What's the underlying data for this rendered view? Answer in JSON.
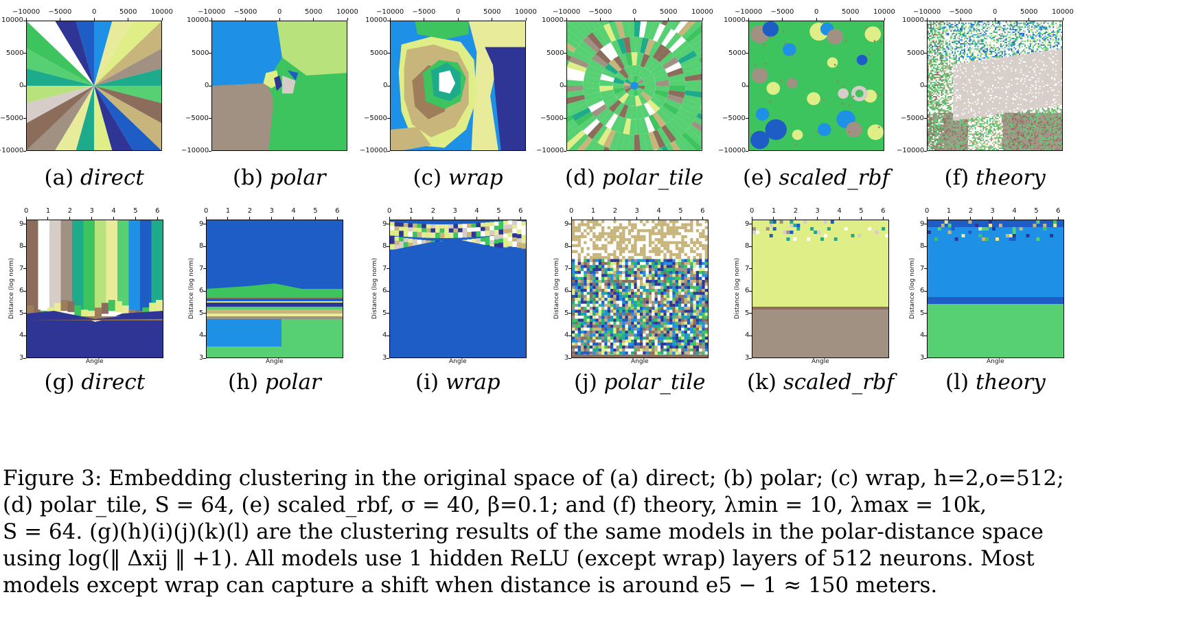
{
  "subcaptions_top": [
    {
      "letter": "(a)",
      "name": "direct"
    },
    {
      "letter": "(b)",
      "name": "polar"
    },
    {
      "letter": "(c)",
      "name": "wrap"
    },
    {
      "letter": "(d)",
      "name": "polar_tile"
    },
    {
      "letter": "(e)",
      "name": "scaled_rbf"
    },
    {
      "letter": "(f)",
      "name": "theory"
    }
  ],
  "subcaptions_bottom": [
    {
      "letter": "(g)",
      "name": "direct"
    },
    {
      "letter": "(h)",
      "name": "polar"
    },
    {
      "letter": "(i)",
      "name": "wrap"
    },
    {
      "letter": "(j)",
      "name": "polar_tile"
    },
    {
      "letter": "(k)",
      "name": "scaled_rbf"
    },
    {
      "letter": "(l)",
      "name": "theory"
    }
  ],
  "chart_data": [
    {
      "type": "heatmap",
      "panel": "(a)",
      "x_ticks": [
        "−10000",
        "−5000",
        "0",
        "5000",
        "10000"
      ],
      "y_ticks": [
        "10000",
        "5000",
        "0",
        "−5000",
        "−10000"
      ],
      "xlim": [
        -10000,
        10000
      ],
      "ylim": [
        -10000,
        10000
      ]
    },
    {
      "type": "heatmap",
      "panel": "(b)",
      "x_ticks": [
        "−10000",
        "−5000",
        "0",
        "5000",
        "10000"
      ],
      "y_ticks": [
        "10000",
        "5000",
        "0",
        "−5000",
        "−10000"
      ],
      "xlim": [
        -10000,
        10000
      ],
      "ylim": [
        -10000,
        10000
      ]
    },
    {
      "type": "heatmap",
      "panel": "(c)",
      "x_ticks": [
        "−10000",
        "−5000",
        "0",
        "5000",
        "10000"
      ],
      "y_ticks": [
        "10000",
        "5000",
        "0",
        "−5000",
        "−10000"
      ],
      "xlim": [
        -10000,
        10000
      ],
      "ylim": [
        -10000,
        10000
      ]
    },
    {
      "type": "heatmap",
      "panel": "(d)",
      "x_ticks": [
        "−10000",
        "−5000",
        "0",
        "5000",
        "10000"
      ],
      "y_ticks": [
        "10000",
        "5000",
        "0",
        "−5000",
        "−10000"
      ],
      "xlim": [
        -10000,
        10000
      ],
      "ylim": [
        -10000,
        10000
      ]
    },
    {
      "type": "heatmap",
      "panel": "(e)",
      "x_ticks": [
        "−10000",
        "−5000",
        "0",
        "5000",
        "10000"
      ],
      "y_ticks": [
        "10000",
        "5000",
        "0",
        "−5000",
        "−10000"
      ],
      "xlim": [
        -10000,
        10000
      ],
      "ylim": [
        -10000,
        10000
      ]
    },
    {
      "type": "heatmap",
      "panel": "(f)",
      "x_ticks": [
        "−10000",
        "−5000",
        "0",
        "5000",
        "10000"
      ],
      "y_ticks": [
        "10000",
        "5000",
        "0",
        "−5000",
        "−10000"
      ],
      "xlim": [
        -10000,
        10000
      ],
      "ylim": [
        -10000,
        10000
      ]
    },
    {
      "type": "heatmap",
      "panel": "(g)",
      "x_ticks": [
        "0",
        "1",
        "2",
        "3",
        "4",
        "5",
        "6"
      ],
      "y_ticks": [
        "9",
        "8",
        "7",
        "6",
        "5",
        "4",
        "3"
      ],
      "xlabel": "Angle",
      "ylabel": "Distance (log norm)",
      "xlim": [
        0,
        6.28
      ],
      "ylim": [
        3,
        9.2
      ]
    },
    {
      "type": "heatmap",
      "panel": "(h)",
      "x_ticks": [
        "0",
        "1",
        "2",
        "3",
        "4",
        "5",
        "6"
      ],
      "y_ticks": [
        "9",
        "8",
        "7",
        "6",
        "5",
        "4",
        "3"
      ],
      "xlabel": "Angle",
      "ylabel": "Distance (log norm)",
      "xlim": [
        0,
        6.28
      ],
      "ylim": [
        3,
        9.2
      ]
    },
    {
      "type": "heatmap",
      "panel": "(i)",
      "x_ticks": [
        "0",
        "1",
        "2",
        "3",
        "4",
        "5",
        "6"
      ],
      "y_ticks": [
        "9",
        "8",
        "7",
        "6",
        "5",
        "4",
        "3"
      ],
      "xlabel": "Angle",
      "ylabel": "Distance (log norm)",
      "xlim": [
        0,
        6.28
      ],
      "ylim": [
        3,
        9.2
      ]
    },
    {
      "type": "heatmap",
      "panel": "(j)",
      "x_ticks": [
        "0",
        "1",
        "2",
        "3",
        "4",
        "5",
        "6"
      ],
      "y_ticks": [
        "9",
        "8",
        "7",
        "6",
        "5",
        "4",
        "3"
      ],
      "xlabel": "Angle",
      "ylabel": "Distance (log norm)",
      "xlim": [
        0,
        6.28
      ],
      "ylim": [
        3,
        9.2
      ]
    },
    {
      "type": "heatmap",
      "panel": "(k)",
      "x_ticks": [
        "0",
        "1",
        "2",
        "3",
        "4",
        "5",
        "6"
      ],
      "y_ticks": [
        "9",
        "8",
        "7",
        "6",
        "5",
        "4",
        "3"
      ],
      "xlabel": "Angle",
      "ylabel": "Distance (log norm)",
      "xlim": [
        0,
        6.28
      ],
      "ylim": [
        3,
        9.2
      ]
    },
    {
      "type": "heatmap",
      "panel": "(l)",
      "x_ticks": [
        "0",
        "1",
        "2",
        "3",
        "4",
        "5",
        "6"
      ],
      "y_ticks": [
        "9",
        "8",
        "7",
        "6",
        "5",
        "4",
        "3"
      ],
      "xlabel": "Angle",
      "ylabel": "Distance (log norm)",
      "xlim": [
        0,
        6.28
      ],
      "ylim": [
        3,
        9.2
      ]
    }
  ],
  "palette": [
    "#8c6d5c",
    "#ffffff",
    "#d6cdc8",
    "#1dab8c",
    "#b8e27c",
    "#e8ec9a",
    "#3dc45e",
    "#1e5cc6",
    "#2f3594",
    "#a09183",
    "#9e7d5b",
    "#56d072",
    "#c8b57c",
    "#e0ee88",
    "#1e90e6"
  ],
  "figure_caption": {
    "line1": "Figure 3: Embedding clustering in the original space of (a) direct; (b) polar; (c) wrap, h=2,o=512;",
    "line2": "(d) polar_tile, S = 64, (e) scaled_rbf, σ = 40, β=0.1; and (f) theory, λmin = 10, λmax = 10k,",
    "line3": "S = 64. (g)(h)(i)(j)(k)(l) are the clustering results of the same models in the polar-distance space",
    "line4": "using log(‖ Δxij ‖ +1). All models use 1 hidden ReLU (except wrap) layers of 512 neurons. Most",
    "line5": "models except wrap can capture a shift when distance is around e5 − 1 ≈ 150 meters."
  }
}
